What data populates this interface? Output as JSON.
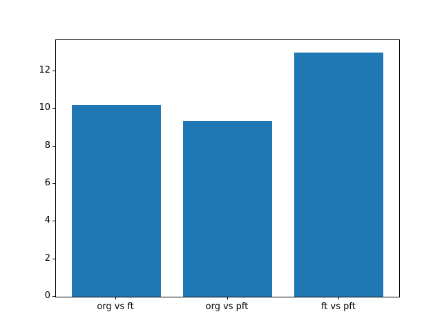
{
  "figure": {
    "background": "#ffffff",
    "axes_edge_color": "#000000",
    "tick_color": "#000000",
    "label_color": "#000000"
  },
  "chart_data": {
    "type": "bar",
    "title": "",
    "xlabel": "",
    "ylabel": "",
    "categories": [
      "org vs ft",
      "org vs pft",
      "ft vs pft"
    ],
    "values": [
      10.2,
      9.35,
      13.0
    ],
    "bar_color": "#1f77b4",
    "bar_width_data_units": 0.8,
    "ylim": [
      0,
      13.65
    ],
    "yticks": [
      0,
      2,
      4,
      6,
      8,
      10,
      12
    ],
    "grid": false,
    "legend_position": "none"
  }
}
